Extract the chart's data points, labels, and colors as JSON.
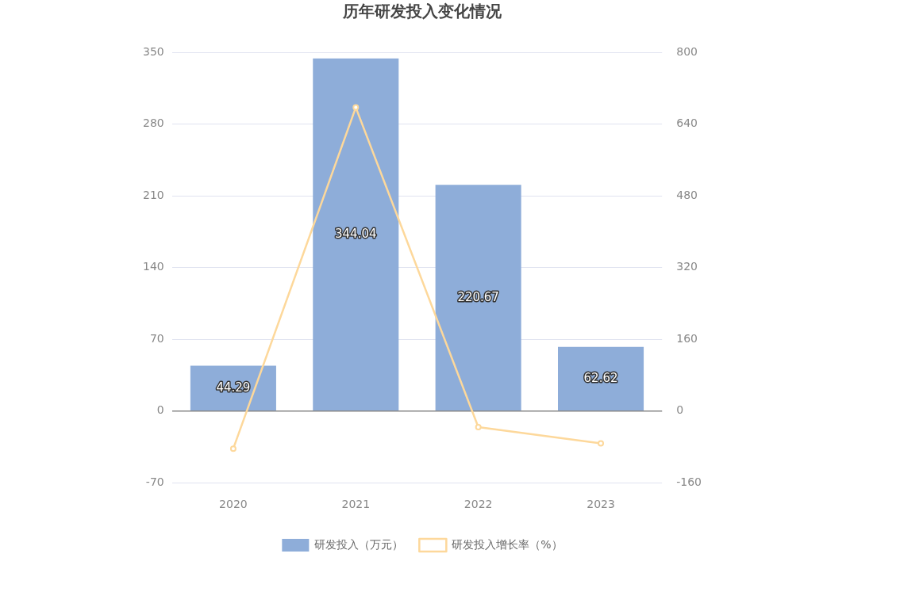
{
  "chart_data": {
    "type": "bar",
    "title": "历年研发投入变化情况",
    "categories": [
      "2020",
      "2021",
      "2022",
      "2023"
    ],
    "series": [
      {
        "name": "研发投入（万元）",
        "color": "#8eadd9",
        "values": [
          44.29,
          344.04,
          220.67,
          62.62
        ],
        "value_labels": [
          "44.29",
          "344.04",
          "220.67",
          "62.62"
        ]
      },
      {
        "name": "研发投入增长率（%）",
        "type": "line",
        "axis": "y2",
        "color": "#fdd89b",
        "values": [
          -84,
          677,
          -36,
          -72
        ]
      }
    ],
    "ylim": [
      -70,
      350
    ],
    "yticks": [
      -70,
      0,
      70,
      140,
      210,
      280,
      350
    ],
    "y2lim": [
      -160,
      800
    ],
    "y2ticks": [
      -160,
      0,
      160,
      320,
      480,
      640,
      800
    ],
    "grid": "y",
    "legend": "bottom",
    "marker": "circle"
  }
}
